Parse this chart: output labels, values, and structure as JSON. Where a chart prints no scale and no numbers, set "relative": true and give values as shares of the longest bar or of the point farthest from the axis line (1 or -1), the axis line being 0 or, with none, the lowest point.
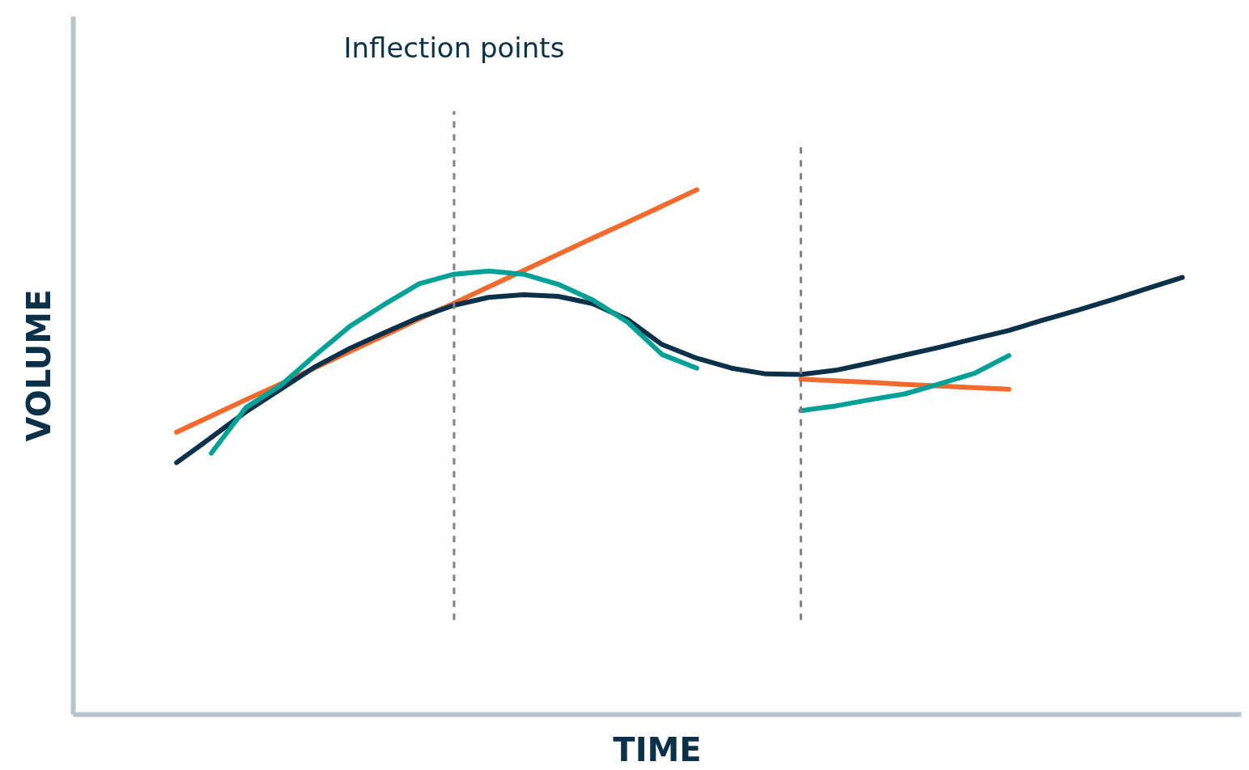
{
  "chart_data": {
    "type": "line",
    "relative": true,
    "xlabel": "TIME",
    "ylabel": "VOLUME",
    "line_style": "solid",
    "annotations": [
      "Inflection points"
    ],
    "categories": [
      null,
      null,
      null,
      null,
      null,
      null,
      null,
      null,
      null,
      null,
      null,
      null,
      null,
      null,
      null,
      null,
      null,
      null,
      null,
      null,
      null,
      null,
      null,
      null,
      null,
      null,
      null,
      null,
      null,
      null
    ],
    "series": [
      {
        "color": "#f26a2e",
        "values": [
          0.538,
          0.569,
          0.6,
          0.63,
          0.661,
          0.692,
          0.723,
          0.754,
          0.784,
          0.815,
          0.846,
          0.877,
          0.908,
          0.938,
          0.969,
          1,
          null,
          null,
          0.639,
          0.636,
          0.633,
          0.629,
          0.626,
          0.623,
          0.62,
          null,
          null,
          null,
          null,
          null
        ]
      },
      {
        "color": "#0b3049",
        "values": [
          0.48,
          0.528,
          0.577,
          0.62,
          0.663,
          0.698,
          0.728,
          0.757,
          0.78,
          0.795,
          0.8,
          0.797,
          0.783,
          0.753,
          0.705,
          0.679,
          0.66,
          0.649,
          0.648,
          0.656,
          0.67,
          0.685,
          0.7,
          0.716,
          0.732,
          0.752,
          0.771,
          0.791,
          0.812,
          0.833
        ]
      },
      {
        "color": "#00a096",
        "values": [
          null,
          0.498,
          0.585,
          0.627,
          0.685,
          0.74,
          0.782,
          0.821,
          0.839,
          0.845,
          0.839,
          0.82,
          0.79,
          0.748,
          0.686,
          0.66,
          null,
          null,
          0.579,
          0.588,
          0.6,
          0.611,
          0.63,
          0.65,
          0.684,
          null,
          null,
          null,
          null,
          null
        ]
      }
    ]
  }
}
